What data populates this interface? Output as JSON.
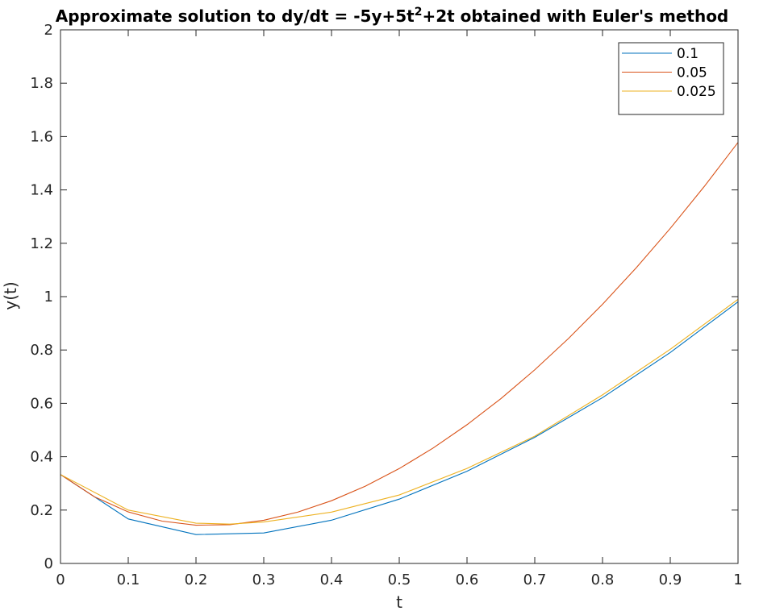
{
  "chart_data": {
    "type": "line",
    "title": {
      "prefix": "Approximate solution to dy/dt = -5y+5t",
      "superscript": "2",
      "suffix": "+2t obtained with Euler's method"
    },
    "xlabel": "t",
    "ylabel": "y(t)",
    "xlim": [
      0,
      1
    ],
    "ylim": [
      0,
      2
    ],
    "xticks": [
      0,
      0.1,
      0.2,
      0.3,
      0.4,
      0.5,
      0.6,
      0.7,
      0.8,
      0.9,
      1
    ],
    "xtick_labels": [
      "0",
      "0.1",
      "0.2",
      "0.3",
      "0.4",
      "0.5",
      "0.6",
      "0.7",
      "0.8",
      "0.9",
      "1"
    ],
    "yticks": [
      0,
      0.2,
      0.4,
      0.6,
      0.8,
      1,
      1.2,
      1.4,
      1.6,
      1.8,
      2
    ],
    "ytick_labels": [
      "0",
      "0.2",
      "0.4",
      "0.6",
      "0.8",
      "1",
      "1.2",
      "1.4",
      "1.6",
      "1.8",
      "2"
    ],
    "grid": false,
    "legend_position": "top-right",
    "series": [
      {
        "name": "0.1",
        "color": "#0072BD",
        "x": [
          0,
          0.1,
          0.2,
          0.3,
          0.4,
          0.5,
          0.6,
          0.7,
          0.8,
          0.9,
          1.0
        ],
        "y": [
          0.3333,
          0.1667,
          0.1083,
          0.1142,
          0.1621,
          0.2411,
          0.3455,
          0.4728,
          0.6214,
          0.7907,
          0.9804
        ]
      },
      {
        "name": "0.05",
        "color": "#D95319",
        "x": [
          0,
          0.05,
          0.1,
          0.15,
          0.2,
          0.25,
          0.3,
          0.35,
          0.4,
          0.45,
          0.5,
          0.55,
          0.6,
          0.65,
          0.7,
          0.75,
          0.8,
          0.85,
          0.9,
          0.95,
          1.0
        ],
        "y": [
          0.3333,
          0.25,
          0.1931,
          0.1586,
          0.1434,
          0.1451,
          0.1619,
          0.1922,
          0.2351,
          0.2898,
          0.3556,
          0.4325,
          0.52,
          0.6178,
          0.7258,
          0.8437,
          0.9714,
          1.1088,
          1.2558,
          1.4123,
          1.5781
        ]
      },
      {
        "name": "0.025",
        "color": "#EDB120",
        "x": [
          0,
          0.1,
          0.2,
          0.25,
          0.3,
          0.4,
          0.5,
          0.6,
          0.7,
          0.8,
          0.9,
          1.0
        ],
        "y": [
          0.3333,
          0.2,
          0.151,
          0.1476,
          0.1555,
          0.1924,
          0.2566,
          0.356,
          0.477,
          0.6318,
          0.8026,
          0.99
        ]
      }
    ]
  }
}
